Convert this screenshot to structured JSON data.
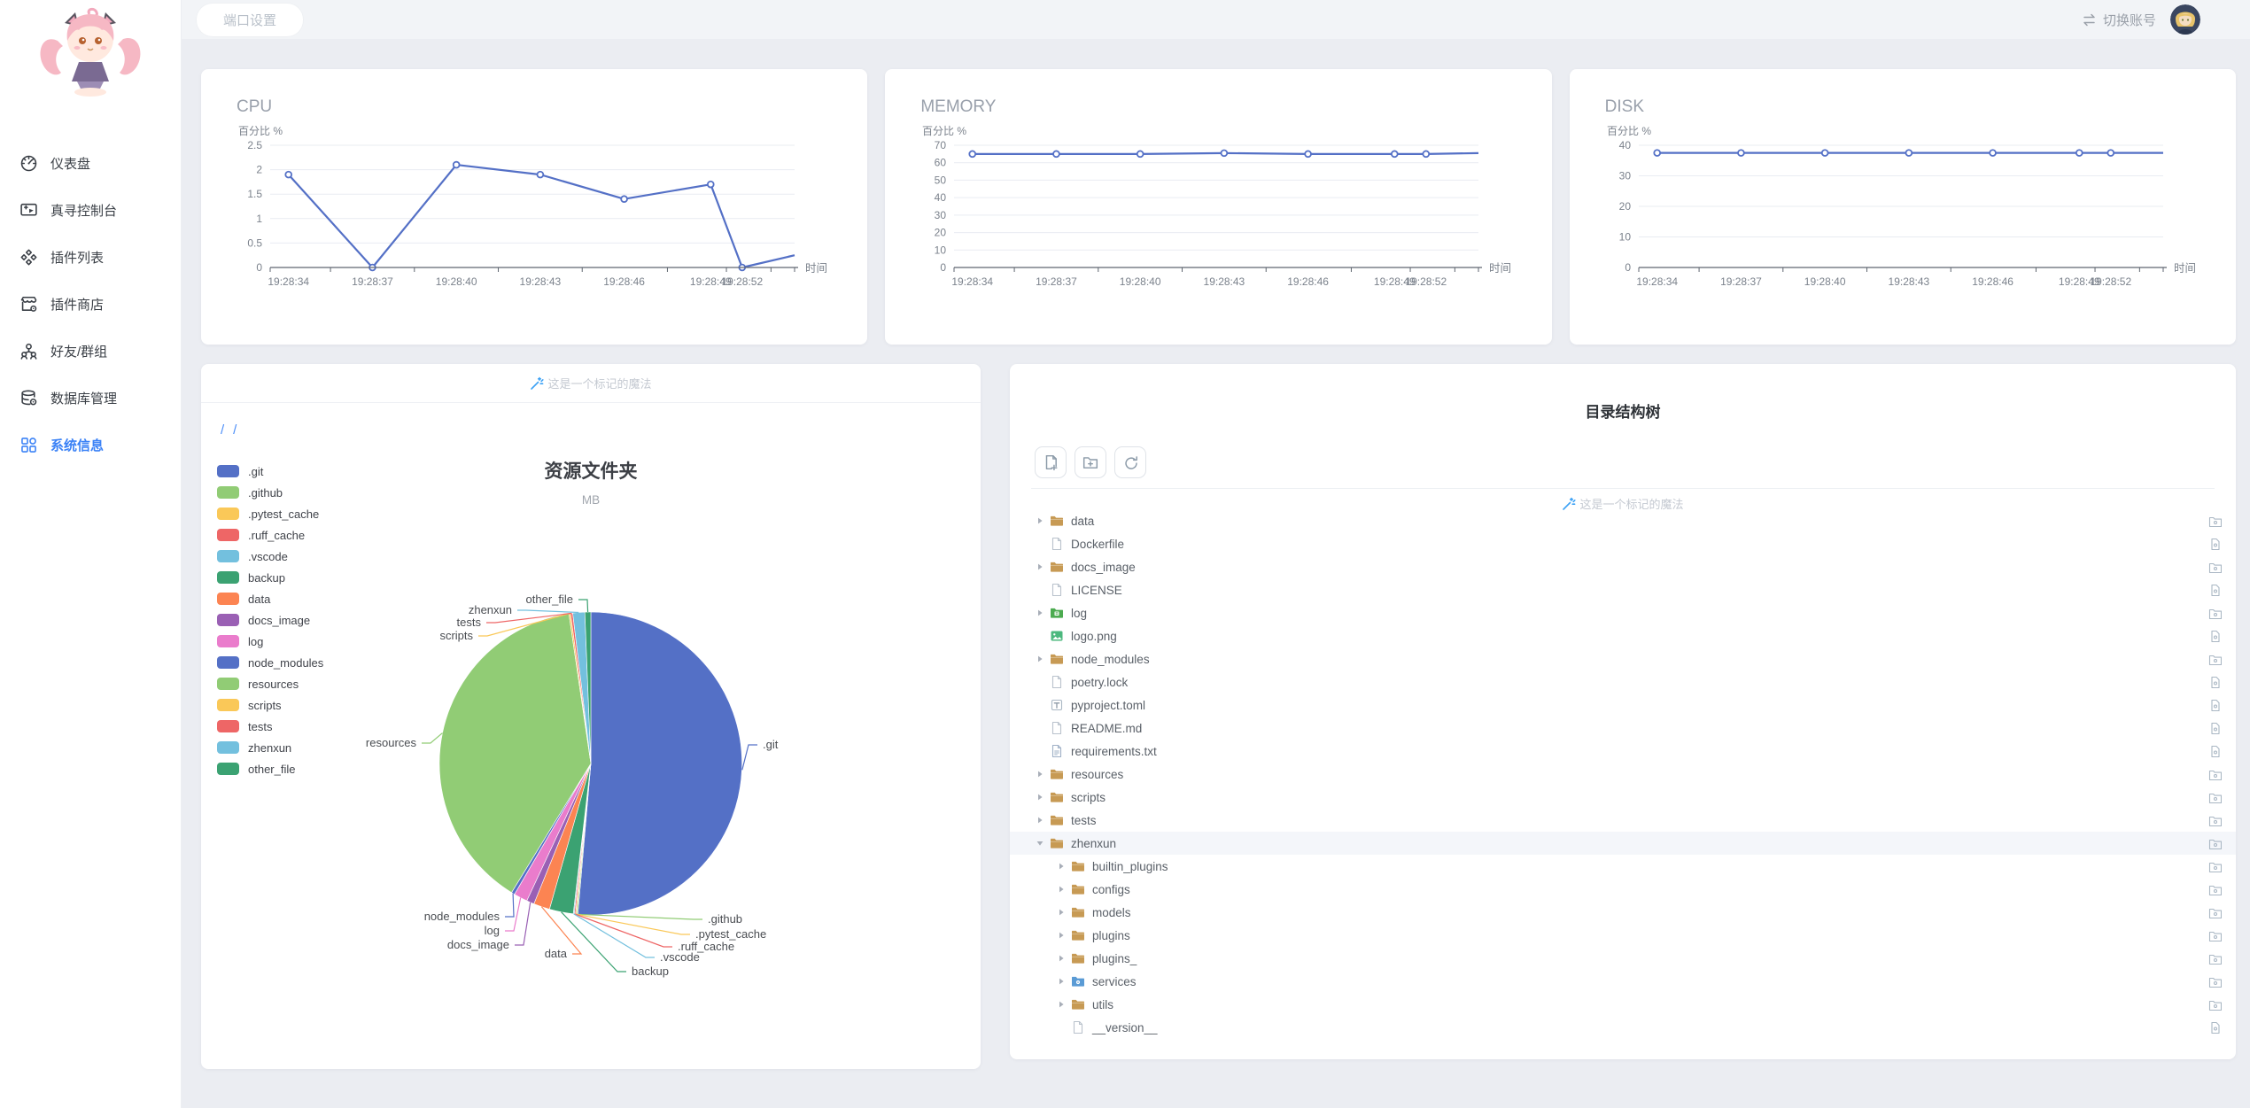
{
  "topbar": {
    "port_button": "端口设置",
    "switch_account": "切换账号"
  },
  "sidebar": {
    "items": [
      {
        "label": "仪表盘",
        "icon": "gauge-icon",
        "active": false
      },
      {
        "label": "真寻控制台",
        "icon": "console-icon",
        "active": false
      },
      {
        "label": "插件列表",
        "icon": "plugins-icon",
        "active": false
      },
      {
        "label": "插件商店",
        "icon": "store-icon",
        "active": false
      },
      {
        "label": "好友/群组",
        "icon": "friends-icon",
        "active": false
      },
      {
        "label": "数据库管理",
        "icon": "database-icon",
        "active": false
      },
      {
        "label": "系统信息",
        "icon": "grid-icon",
        "active": true
      }
    ]
  },
  "chart_data": [
    {
      "type": "line",
      "title": "CPU",
      "ylabel": "百分比 %",
      "xlabel": "时间",
      "x": [
        "19:28:34",
        "19:28:37",
        "19:28:40",
        "19:28:43",
        "19:28:46",
        "19:28:49",
        "19:28:52"
      ],
      "values": [
        1.9,
        0,
        2.1,
        1.9,
        1.4,
        1.7,
        0
      ],
      "trailing_value": 0.25,
      "ylim": [
        0,
        2.5
      ],
      "yticks": [
        0,
        0.5,
        1,
        1.5,
        2,
        2.5
      ],
      "line_color": "#5470c6",
      "grid": true
    },
    {
      "type": "line",
      "title": "MEMORY",
      "ylabel": "百分比 %",
      "xlabel": "时间",
      "x": [
        "19:28:34",
        "19:28:37",
        "19:28:40",
        "19:28:43",
        "19:28:46",
        "19:28:49",
        "19:28:52"
      ],
      "values": [
        65,
        65,
        65,
        65.5,
        65,
        65,
        65
      ],
      "trailing_value": 65.5,
      "ylim": [
        0,
        70
      ],
      "yticks": [
        0,
        10,
        20,
        30,
        40,
        50,
        60,
        70
      ],
      "line_color": "#5470c6",
      "grid": true
    },
    {
      "type": "line",
      "title": "DISK",
      "ylabel": "百分比 %",
      "xlabel": "时间",
      "x": [
        "19:28:34",
        "19:28:37",
        "19:28:40",
        "19:28:43",
        "19:28:46",
        "19:28:49",
        "19:28:52"
      ],
      "values": [
        37.5,
        37.5,
        37.5,
        37.5,
        37.5,
        37.5,
        37.5
      ],
      "trailing_value": 37.5,
      "ylim": [
        0,
        40
      ],
      "yticks": [
        0,
        10,
        20,
        30,
        40
      ],
      "line_color": "#5470c6",
      "grid": true
    },
    {
      "type": "pie",
      "title": "资源文件夹",
      "subtitle": "MB",
      "unit": "MB",
      "legend_position": "left",
      "items": [
        {
          "name": ".git",
          "value": 565,
          "color": "#5470c6"
        },
        {
          "name": ".github",
          "value": 1.5,
          "color": "#91cc75"
        },
        {
          "name": ".pytest_cache",
          "value": 1.2,
          "color": "#fac858"
        },
        {
          "name": ".ruff_cache",
          "value": 1.5,
          "color": "#ee6666"
        },
        {
          "name": ".vscode",
          "value": 1.2,
          "color": "#73c0de"
        },
        {
          "name": "backup",
          "value": 28,
          "color": "#3ba272"
        },
        {
          "name": "data",
          "value": 19,
          "color": "#fc8452"
        },
        {
          "name": "docs_image",
          "value": 9,
          "color": "#9a60b4"
        },
        {
          "name": "log",
          "value": 16,
          "color": "#ea7ccc"
        },
        {
          "name": "node_modules",
          "value": 4,
          "color": "#5470c6"
        },
        {
          "name": "resources",
          "value": 428,
          "color": "#91cc75"
        },
        {
          "name": "scripts",
          "value": 2,
          "color": "#fac858"
        },
        {
          "name": "tests",
          "value": 2.5,
          "color": "#ee6666"
        },
        {
          "name": "zhenxun",
          "value": 14,
          "color": "#73c0de"
        },
        {
          "name": "other_file",
          "value": 7,
          "color": "#3ba272"
        }
      ]
    }
  ],
  "pie_card": {
    "marker_note": "这是一个标记的魔法",
    "breadcrumb": [
      "/",
      "/"
    ]
  },
  "tree_card": {
    "title": "目录结构树",
    "marker_note": "这是一个标记的魔法",
    "toolbar": [
      {
        "name": "new-file-button",
        "icon": "file-plus-icon"
      },
      {
        "name": "new-folder-button",
        "icon": "folder-plus-icon"
      },
      {
        "name": "refresh-button",
        "icon": "refresh-icon"
      }
    ],
    "rows": [
      {
        "name": "data",
        "icon": "folder",
        "kind": "folder",
        "level": 0,
        "arrow": "closed"
      },
      {
        "name": "Dockerfile",
        "icon": "file",
        "kind": "file",
        "level": 0,
        "arrow": "none"
      },
      {
        "name": "docs_image",
        "icon": "folder",
        "kind": "folder",
        "level": 0,
        "arrow": "closed"
      },
      {
        "name": "LICENSE",
        "icon": "file",
        "kind": "file",
        "level": 0,
        "arrow": "none"
      },
      {
        "name": "log",
        "icon": "folder-green",
        "kind": "folder",
        "level": 0,
        "arrow": "closed"
      },
      {
        "name": "logo.png",
        "icon": "image",
        "kind": "file",
        "level": 0,
        "arrow": "none"
      },
      {
        "name": "node_modules",
        "icon": "folder",
        "kind": "folder",
        "level": 0,
        "arrow": "closed"
      },
      {
        "name": "poetry.lock",
        "icon": "file",
        "kind": "file",
        "level": 0,
        "arrow": "none"
      },
      {
        "name": "pyproject.toml",
        "icon": "toml",
        "kind": "file",
        "level": 0,
        "arrow": "none"
      },
      {
        "name": "README.md",
        "icon": "file",
        "kind": "file",
        "level": 0,
        "arrow": "none"
      },
      {
        "name": "requirements.txt",
        "icon": "text",
        "kind": "file",
        "level": 0,
        "arrow": "none"
      },
      {
        "name": "resources",
        "icon": "folder",
        "kind": "folder",
        "level": 0,
        "arrow": "closed"
      },
      {
        "name": "scripts",
        "icon": "folder",
        "kind": "folder",
        "level": 0,
        "arrow": "closed"
      },
      {
        "name": "tests",
        "icon": "folder",
        "kind": "folder",
        "level": 0,
        "arrow": "closed"
      },
      {
        "name": "zhenxun",
        "icon": "folder",
        "kind": "folder",
        "level": 0,
        "arrow": "open",
        "highlighted": true
      },
      {
        "name": "builtin_plugins",
        "icon": "folder",
        "kind": "folder",
        "level": 1,
        "arrow": "closed"
      },
      {
        "name": "configs",
        "icon": "folder",
        "kind": "folder",
        "level": 1,
        "arrow": "closed"
      },
      {
        "name": "models",
        "icon": "folder",
        "kind": "folder",
        "level": 1,
        "arrow": "closed"
      },
      {
        "name": "plugins",
        "icon": "folder",
        "kind": "folder",
        "level": 1,
        "arrow": "closed"
      },
      {
        "name": "plugins_",
        "icon": "folder",
        "kind": "folder",
        "level": 1,
        "arrow": "closed"
      },
      {
        "name": "services",
        "icon": "folder-blue",
        "kind": "folder",
        "level": 1,
        "arrow": "closed"
      },
      {
        "name": "utils",
        "icon": "folder",
        "kind": "folder",
        "level": 1,
        "arrow": "closed"
      },
      {
        "name": "__version__",
        "icon": "file",
        "kind": "file",
        "level": 1,
        "arrow": "none"
      }
    ]
  }
}
